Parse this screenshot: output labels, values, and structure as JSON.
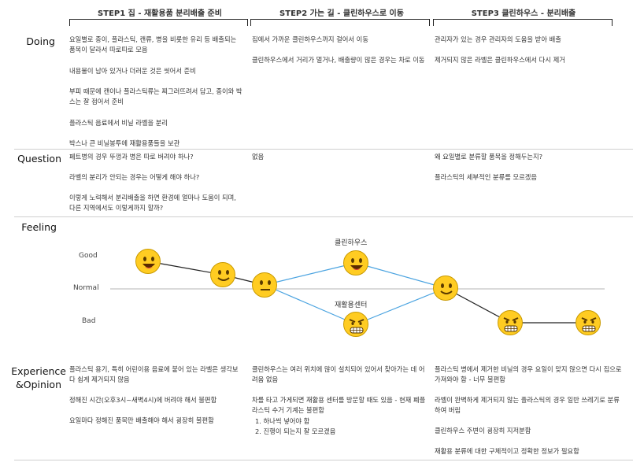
{
  "steps": [
    "STEP1 집 - 재활용품 분리배출 준비",
    "STEP2 가는 길 - 클린하우스로 이동",
    "STEP3 클린하우스 - 분리배출"
  ],
  "rows": {
    "doing": "Doing",
    "question": "Question",
    "feeling": "Feeling",
    "experience_1": "Experience",
    "experience_2": "&Opinion"
  },
  "doing": {
    "s1": [
      "요일별로 종이, 플라스틱, 캔류, 병을 비롯한 유리 등 배출되는 품목이 달라서 따로따로 모음",
      "내용물이 남아 있거나 더러운 것은 씻어서 준비",
      "부피 때문에 캔이나 플라스틱류는 찌그러뜨려서 담고, 종이와 박스는 잘 접어서 준비",
      "플라스틱 음료에서 비닐 라벨을 분리",
      "박스나 큰 비닐봉투에 재활용품들을 보관"
    ],
    "s2": [
      "집에서 가까운 클린하우스까지 걸어서 이동",
      "클린하우스에서 거리가 멀거나, 배출량이 많은 경우는 차로 이동"
    ],
    "s3": [
      "관리자가 있는 경우 관리자의 도움을 받아 배출",
      "제거되지 않은 라벨은 클린하우스에서 다시 제거"
    ]
  },
  "question": {
    "s1": [
      "페트병의 경우 뚜껑과 병은 따로 버려야 하나?",
      "라벨의 분리가 안되는 경우는 어떻게 해야 하나?",
      "이렇게 노력해서 분리배출을 하면 환경에 얼마나 도움이 되며, 다른 지역에서도 이렇게까지 할까?"
    ],
    "s2": [
      "없음"
    ],
    "s3": [
      "왜 요일별로 분류할 품목을 정해두는지?",
      "플라스틱의 세부적인 분류를 모르겠음"
    ]
  },
  "feeling": {
    "scale": [
      "Good",
      "Normal",
      "Bad"
    ],
    "labels": {
      "cleanhouse": "클린하우스",
      "recycle_center": "재활용센터"
    }
  },
  "experience": {
    "s1": [
      "플라스틱 용기, 특히 어린이용 음료에 붙어 있는 라벨은 생각보다 쉽게 제거되지 않음",
      "정해진 시간(오후3시~새벽4시)에 버려야 해서 불편함",
      "요일마다 정해진 품목만 배출해야 해서 굉장히 불편함"
    ],
    "s2": [
      "클린하우스는 여러 위치에 많이 설치되어 있어서 찾아가는 데 어려움 없음",
      "차를 타고 가게되면 재활용 센터를 방문할 때도 있음 - 현재 폐플라스틱 수거 기계는 불편함",
      "1. 하나씩 넣어야 함",
      "2. 진행이 되는지 잘 모르겠음"
    ],
    "s3": [
      "플라스틱 병에서 제거한 비닐의 경우 요일이 맞지 않으면 다시 집으로 가져와야 함 - 너무 불편함",
      "라벨이 완벽하게 제거되지 않는 플라스틱의 경우 일반 쓰레기로 분류하여 버림",
      "클린하우스 주변이 굉장히 지저분함",
      "재활용 분류에 대한 구체적이고 정확한 정보가 필요함"
    ]
  },
  "colors": {
    "face": "#ffcc22",
    "line_black": "#222222",
    "line_blue": "#4aa3e0",
    "angry_mouth": "#c8102e"
  },
  "icons": [
    "happy-face-icon",
    "neutral-face-icon",
    "angry-face-icon"
  ]
}
